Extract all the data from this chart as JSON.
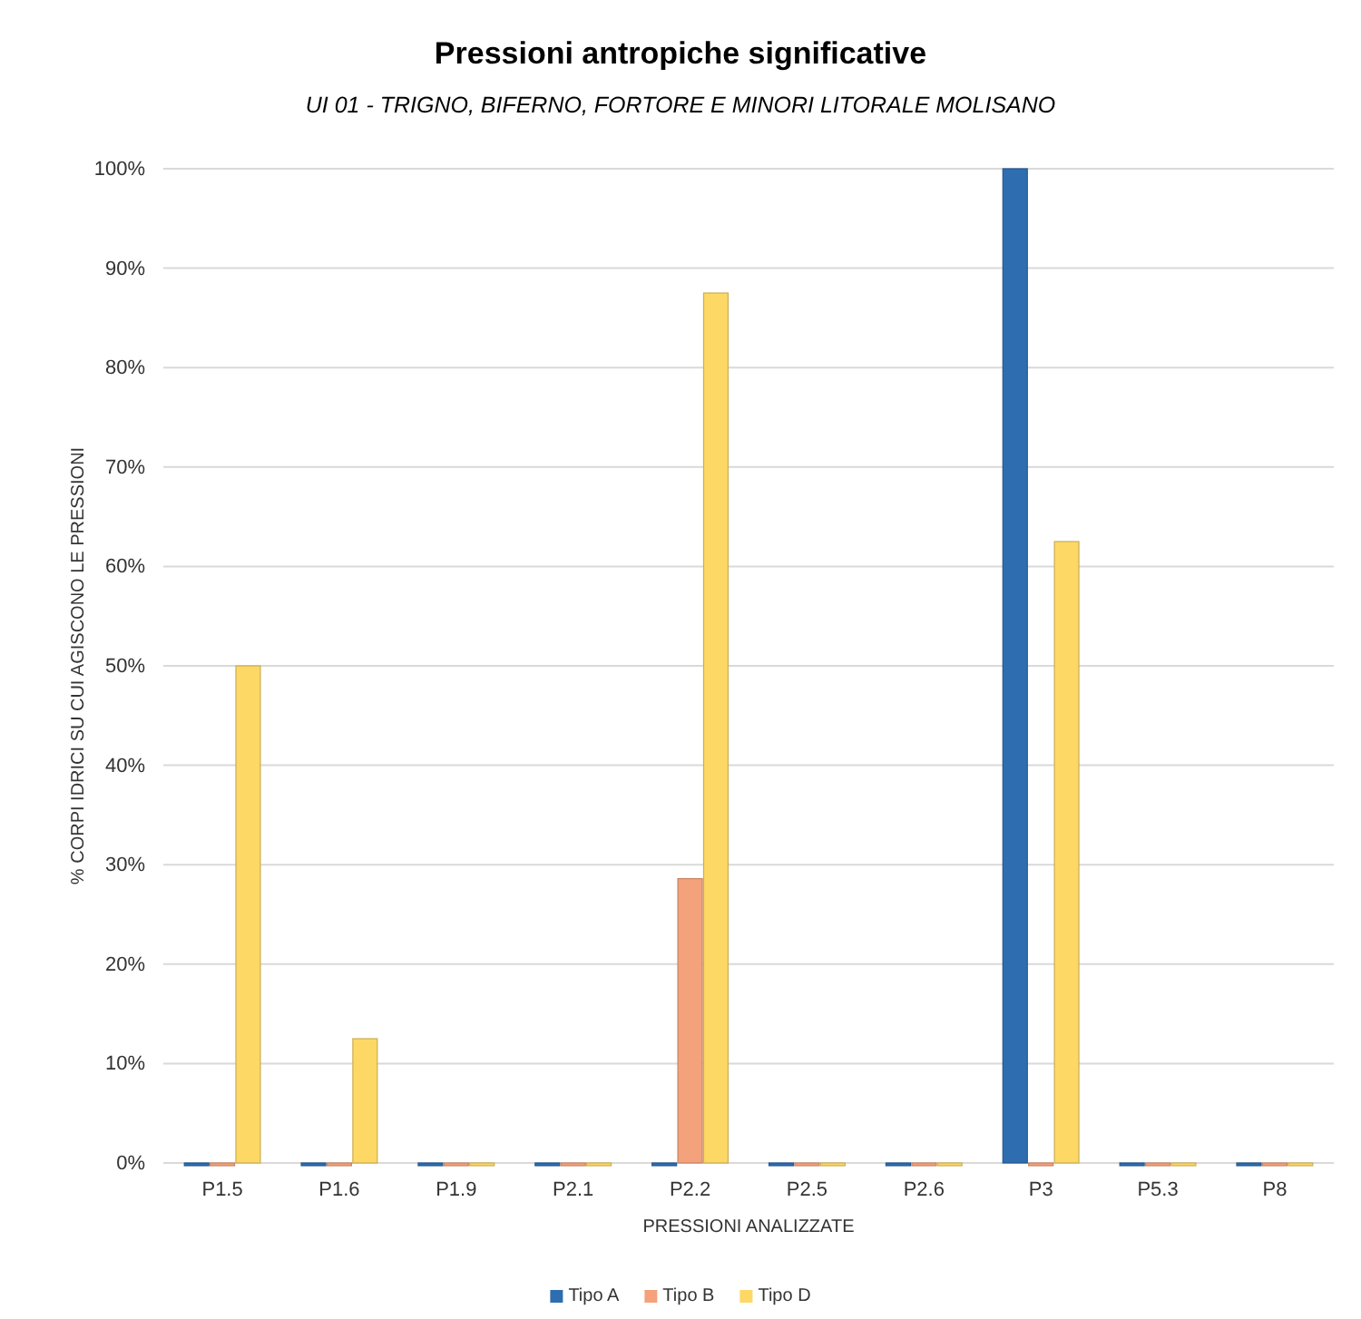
{
  "chart_data": {
    "type": "bar",
    "title": "Pressioni antropiche  significative",
    "subtitle": "UI 01 - TRIGNO,  BIFERNO,  FORTORE  E MINORI  LITORALE  MOLISANO",
    "xlabel": "PRESSIONI ANALIZZATE",
    "ylabel": "% CORPI IDRICI SU CUI AGISCONO LE PRESSIONI",
    "categories": [
      "P1.5",
      "P1.6",
      "P1.9",
      "P2.1",
      "P2.2",
      "P2.5",
      "P2.6",
      "P3",
      "P5.3",
      "P8"
    ],
    "series": [
      {
        "name": "Tipo A",
        "color": "#2e6db0",
        "values": [
          0,
          0,
          0,
          0,
          0,
          0,
          0,
          100,
          0,
          0
        ]
      },
      {
        "name": "Tipo B",
        "color": "#f4a27c",
        "values": [
          0,
          0,
          0,
          0,
          28.6,
          0,
          0,
          0,
          0,
          0
        ]
      },
      {
        "name": "Tipo D",
        "color": "#fdd865",
        "values": [
          50,
          12.5,
          0,
          0,
          87.5,
          0,
          0,
          62.5,
          0,
          0
        ]
      }
    ],
    "ylim": [
      0,
      100
    ],
    "yticks": [
      {
        "value": 0,
        "label": "0%"
      },
      {
        "value": 10,
        "label": "10%"
      },
      {
        "value": 20,
        "label": "20%"
      },
      {
        "value": 30,
        "label": "30%"
      },
      {
        "value": 40,
        "label": "40%"
      },
      {
        "value": 50,
        "label": "50%"
      },
      {
        "value": 60,
        "label": "60%"
      },
      {
        "value": 70,
        "label": "70%"
      },
      {
        "value": 80,
        "label": "80%"
      },
      {
        "value": 90,
        "label": "90%"
      },
      {
        "value": 100,
        "label": "100%"
      }
    ],
    "grid": "y",
    "legend": "bottom"
  }
}
